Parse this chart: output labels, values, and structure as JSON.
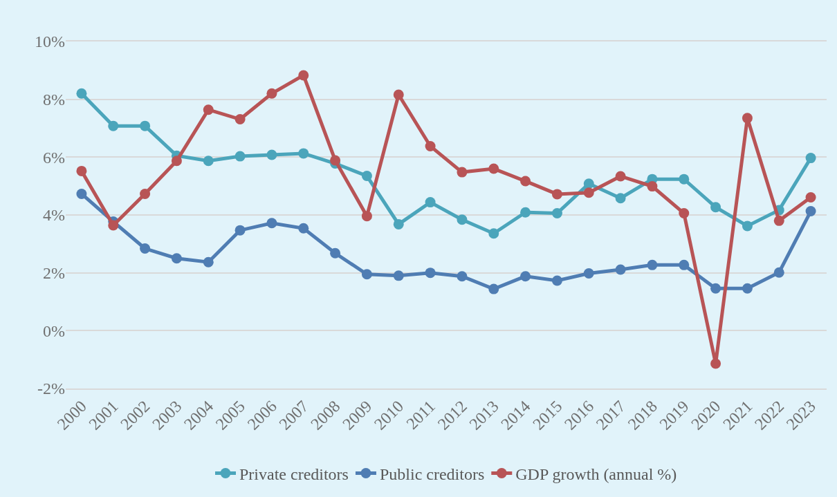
{
  "chart_data": {
    "type": "line",
    "categories": [
      "2000",
      "2001",
      "2002",
      "2003",
      "2004",
      "2005",
      "2006",
      "2007",
      "2008",
      "2009",
      "2010",
      "2011",
      "2012",
      "2013",
      "2014",
      "2015",
      "2016",
      "2017",
      "2018",
      "2019",
      "2020",
      "2021",
      "2022",
      "2023"
    ],
    "series": [
      {
        "name": "Private creditors",
        "color": "#4ba5bb",
        "values": [
          8.2,
          7.08,
          7.08,
          6.05,
          5.87,
          6.03,
          6.08,
          6.13,
          5.78,
          5.35,
          3.68,
          4.44,
          3.84,
          3.36,
          4.09,
          4.06,
          5.08,
          4.58,
          5.24,
          5.24,
          4.27,
          3.62,
          4.17,
          5.97
        ]
      },
      {
        "name": "Public creditors",
        "color": "#4f7db3",
        "values": [
          4.73,
          3.77,
          2.84,
          2.5,
          2.37,
          3.47,
          3.72,
          3.54,
          2.68,
          1.95,
          1.9,
          2.0,
          1.88,
          1.44,
          1.88,
          1.73,
          1.98,
          2.11,
          2.27,
          2.27,
          1.46,
          1.46,
          2.01,
          4.13
        ]
      },
      {
        "name": "GDP growth (annual %)",
        "color": "#b85456",
        "values": [
          5.52,
          3.64,
          4.73,
          5.87,
          7.64,
          7.31,
          8.2,
          8.83,
          5.89,
          3.96,
          8.16,
          6.38,
          5.48,
          5.6,
          5.17,
          4.72,
          4.77,
          5.34,
          4.99,
          4.06,
          -1.14,
          7.35,
          3.8,
          4.61
        ]
      }
    ],
    "ylim": [
      -2,
      10
    ],
    "yticks": [
      {
        "value": -2,
        "label": "-2%"
      },
      {
        "value": 0,
        "label": "0%"
      },
      {
        "value": 2,
        "label": "2%"
      },
      {
        "value": 4,
        "label": "4%"
      },
      {
        "value": 6,
        "label": "6%"
      },
      {
        "value": 8,
        "label": "8%"
      },
      {
        "value": 10,
        "label": "10%"
      }
    ],
    "grid": "y",
    "legend": "bottom",
    "marker": "circle",
    "line_style": "solid"
  }
}
